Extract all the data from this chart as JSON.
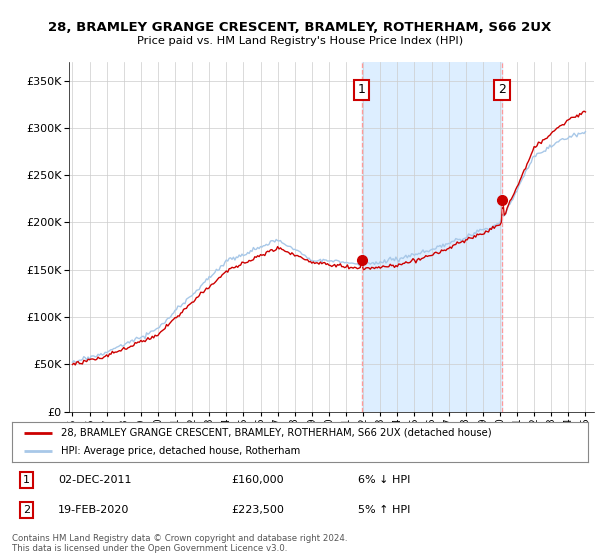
{
  "title1": "28, BRAMLEY GRANGE CRESCENT, BRAMLEY, ROTHERHAM, S66 2UX",
  "title2": "Price paid vs. HM Land Registry's House Price Index (HPI)",
  "legend_line1": "28, BRAMLEY GRANGE CRESCENT, BRAMLEY, ROTHERHAM, S66 2UX (detached house)",
  "legend_line2": "HPI: Average price, detached house, Rotherham",
  "transaction1_date": "02-DEC-2011",
  "transaction1_price": "£160,000",
  "transaction1_hpi": "6% ↓ HPI",
  "transaction2_date": "19-FEB-2020",
  "transaction2_price": "£223,500",
  "transaction2_hpi": "5% ↑ HPI",
  "footer": "Contains HM Land Registry data © Crown copyright and database right 2024.\nThis data is licensed under the Open Government Licence v3.0.",
  "hpi_color": "#a8c8e8",
  "price_color": "#cc0000",
  "marker_color": "#cc0000",
  "shade_color": "#ddeeff",
  "bg_color": "#ffffff",
  "transaction1_x": 2011.92,
  "transaction2_x": 2020.13,
  "ylim_min": 0,
  "ylim_max": 370000,
  "xlim_min": 1994.8,
  "xlim_max": 2025.5
}
